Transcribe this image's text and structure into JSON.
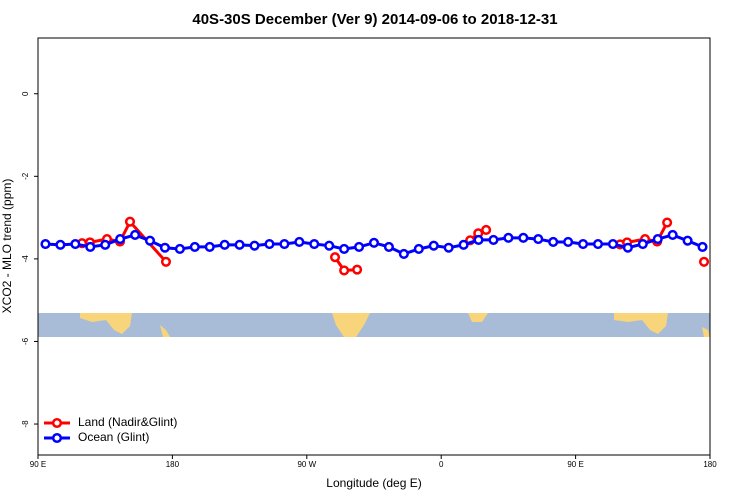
{
  "chart_data": {
    "type": "line",
    "title": "40S-30S December (Ver 9)   2014-09-06 to 2018-12-31",
    "xlabel": "Longitude (deg E)",
    "ylabel": "XCO2 - MLO trend (ppm)",
    "xlim": [
      90,
      540
    ],
    "ylim": [
      -8.75,
      1.35
    ],
    "xticks": [
      {
        "value": 90,
        "label": "90 E"
      },
      {
        "value": 180,
        "label": "180"
      },
      {
        "value": 270,
        "label": "90 W"
      },
      {
        "value": 360,
        "label": "0"
      },
      {
        "value": 450,
        "label": "90 E"
      },
      {
        "value": 540,
        "label": "180"
      }
    ],
    "yticks": [
      0,
      -2,
      -4,
      -6,
      -8
    ],
    "legend": "bottom-left",
    "series": [
      {
        "name": "Land (Nadir&Glint)",
        "color": "#ff0000",
        "x": [
          119.5,
          124.8,
          136.2,
          144.9,
          151.6,
          175.7,
          null,
          288.9,
          295,
          303.7,
          null,
          379.4,
          384.8,
          390.1,
          null,
          479.8,
          484.5,
          496.5,
          504.6,
          511.3,
          null,
          536
        ],
        "values": [
          -3.62,
          -3.6,
          -3.52,
          -3.58,
          -3.1,
          -4.07,
          null,
          -3.96,
          -4.28,
          -4.26,
          null,
          -3.55,
          -3.38,
          -3.3,
          null,
          -3.65,
          -3.6,
          -3.52,
          -3.58,
          -3.12,
          null,
          -4.07
        ]
      },
      {
        "name": "Ocean (Glint)",
        "color": "#0000ff",
        "x": [
          95,
          105,
          115,
          125,
          135,
          145,
          155,
          165,
          175,
          185,
          195,
          205,
          215,
          225,
          235,
          245,
          255,
          265,
          275,
          285,
          295,
          305,
          315,
          325,
          335,
          345,
          355,
          365,
          375,
          385,
          395,
          405,
          415,
          425,
          435,
          445,
          455,
          465,
          475,
          485,
          495,
          505,
          515,
          525,
          535
        ],
        "values": [
          -3.64,
          -3.66,
          -3.64,
          -3.71,
          -3.66,
          -3.52,
          -3.42,
          -3.56,
          -3.73,
          -3.76,
          -3.71,
          -3.71,
          -3.66,
          -3.66,
          -3.68,
          -3.64,
          -3.64,
          -3.59,
          -3.64,
          -3.68,
          -3.76,
          -3.71,
          -3.61,
          -3.71,
          -3.88,
          -3.76,
          -3.68,
          -3.73,
          -3.66,
          -3.54,
          -3.54,
          -3.49,
          -3.49,
          -3.52,
          -3.59,
          -3.59,
          -3.64,
          -3.64,
          -3.64,
          -3.73,
          -3.64,
          -3.52,
          -3.42,
          -3.56,
          -3.71
        ]
      }
    ]
  }
}
